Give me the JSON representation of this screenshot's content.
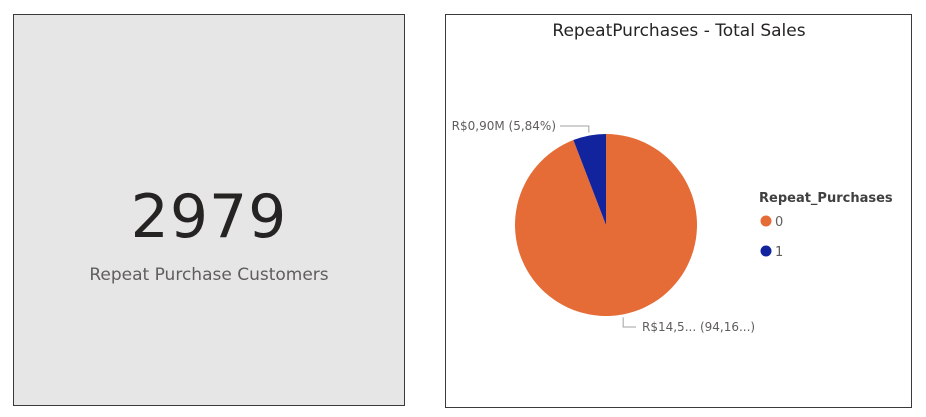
{
  "card": {
    "value": "2979",
    "label": "Repeat Purchase Customers",
    "background": "#e6e6e6"
  },
  "chart_data": {
    "type": "pie",
    "title": "RepeatPurchases - Total Sales",
    "legend": {
      "title": "Repeat_Purchases",
      "position": "right"
    },
    "slices": [
      {
        "category": "0",
        "share_percent": 94.16,
        "label": "R$14,5... (94,16...)",
        "color": "#e66c37"
      },
      {
        "category": "1",
        "share_percent": 5.84,
        "label": "R$0,90M (5,84%)",
        "color": "#12239e"
      }
    ]
  }
}
